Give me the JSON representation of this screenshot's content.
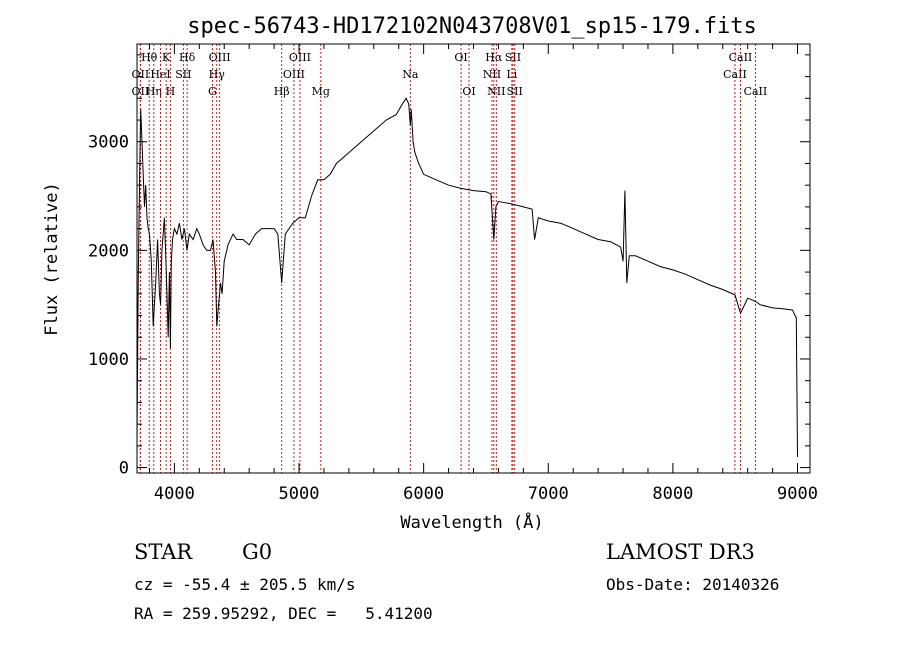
{
  "chart_data": {
    "type": "line",
    "title": "spec-56743-HD172102N043708V01_sp15-179.fits",
    "xlabel": "Wavelength (Å)",
    "ylabel": "Flux (relative)",
    "xlim": [
      3700,
      9100
    ],
    "ylim": [
      -50,
      3900
    ],
    "xticks": [
      4000,
      5000,
      6000,
      7000,
      8000,
      9000
    ],
    "xtick_labels": [
      "4000",
      "5000",
      "6000",
      "7000",
      "8000",
      "9000"
    ],
    "yticks": [
      0,
      1000,
      2000,
      3000
    ],
    "ytick_labels": [
      "0",
      "1000",
      "2000",
      "3000"
    ],
    "series": [
      {
        "name": "flux",
        "x": [
          3700,
          3710,
          3720,
          3730,
          3740,
          3750,
          3760,
          3770,
          3780,
          3790,
          3800,
          3815,
          3830,
          3850,
          3865,
          3880,
          3889,
          3900,
          3920,
          3935,
          3950,
          3960,
          3968,
          3975,
          3985,
          4000,
          4020,
          4040,
          4060,
          4080,
          4101,
          4120,
          4150,
          4180,
          4200,
          4230,
          4260,
          4290,
          4310,
          4330,
          4340,
          4355,
          4370,
          4383,
          4400,
          4430,
          4470,
          4500,
          4550,
          4600,
          4650,
          4700,
          4750,
          4800,
          4830,
          4861,
          4890,
          4920,
          4950,
          5000,
          5050,
          5100,
          5150,
          5200,
          5250,
          5300,
          5400,
          5500,
          5600,
          5700,
          5780,
          5830,
          5860,
          5880,
          5893,
          5900,
          5915,
          5930,
          5960,
          6000,
          6100,
          6200,
          6300,
          6400,
          6500,
          6540,
          6563,
          6580,
          6600,
          6700,
          6800,
          6870,
          6890,
          6920,
          7000,
          7100,
          7200,
          7300,
          7400,
          7500,
          7580,
          7600,
          7615,
          7630,
          7650,
          7700,
          7800,
          7900,
          8000,
          8100,
          8200,
          8300,
          8400,
          8498,
          8542,
          8600,
          8662,
          8700,
          8800,
          8900,
          8960,
          8980,
          8990,
          9000
        ],
        "y": [
          250,
          1700,
          2600,
          3300,
          3000,
          2700,
          2400,
          2600,
          2300,
          2200,
          2150,
          1900,
          1300,
          1700,
          2100,
          1600,
          1500,
          2000,
          2300,
          1800,
          1200,
          1800,
          1100,
          1900,
          2100,
          2200,
          2150,
          2250,
          2100,
          2200,
          2000,
          2150,
          2100,
          2200,
          2150,
          2050,
          2000,
          2000,
          2100,
          1800,
          1300,
          1500,
          1700,
          1600,
          1900,
          2050,
          2150,
          2100,
          2100,
          2050,
          2150,
          2200,
          2200,
          2200,
          2150,
          1700,
          2150,
          2200,
          2250,
          2300,
          2300,
          2500,
          2650,
          2650,
          2700,
          2800,
          2900,
          3000,
          3100,
          3200,
          3250,
          3350,
          3400,
          3350,
          3150,
          3300,
          3000,
          2900,
          2800,
          2700,
          2650,
          2600,
          2570,
          2550,
          2540,
          2520,
          2100,
          2400,
          2450,
          2430,
          2400,
          2380,
          2100,
          2300,
          2270,
          2250,
          2200,
          2150,
          2100,
          2080,
          2030,
          1900,
          2550,
          1700,
          1950,
          1950,
          1900,
          1850,
          1820,
          1780,
          1730,
          1680,
          1640,
          1590,
          1420,
          1560,
          1530,
          1500,
          1470,
          1460,
          1450,
          1400,
          1380,
          100
        ]
      }
    ],
    "lines": [
      {
        "label": "Hθ",
        "wave": 3798,
        "row": 1
      },
      {
        "label": "OII",
        "wave": 3727,
        "row": 2
      },
      {
        "label": "OII",
        "wave": 3727,
        "row": 3
      },
      {
        "label": "Hη",
        "wave": 3835,
        "row": 3
      },
      {
        "label": "HeI",
        "wave": 3889,
        "row": 2
      },
      {
        "label": "K",
        "wave": 3934,
        "row": 1
      },
      {
        "label": "H",
        "wave": 3968,
        "row": 3
      },
      {
        "label": "SII",
        "wave": 4072,
        "row": 2
      },
      {
        "label": "Hδ",
        "wave": 4102,
        "row": 1
      },
      {
        "label": "G",
        "wave": 4305,
        "row": 3
      },
      {
        "label": "Hγ",
        "wave": 4340,
        "row": 2
      },
      {
        "label": "OIII",
        "wave": 4363,
        "row": 1
      },
      {
        "label": "Hβ",
        "wave": 4861,
        "row": 3
      },
      {
        "label": "OIII",
        "wave": 4959,
        "row": 2
      },
      {
        "label": "OIII",
        "wave": 5007,
        "row": 1
      },
      {
        "label": "Mg",
        "wave": 5175,
        "row": 3
      },
      {
        "label": "Na",
        "wave": 5893,
        "row": 2
      },
      {
        "label": "OI",
        "wave": 6300,
        "row": 1
      },
      {
        "label": "OI",
        "wave": 6364,
        "row": 3
      },
      {
        "label": "NII",
        "wave": 6548,
        "row": 2
      },
      {
        "label": "Hα",
        "wave": 6563,
        "row": 1
      },
      {
        "label": "NII",
        "wave": 6583,
        "row": 3
      },
      {
        "label": "Li",
        "wave": 6708,
        "row": 2
      },
      {
        "label": "SII",
        "wave": 6717,
        "row": 1
      },
      {
        "label": "SII",
        "wave": 6731,
        "row": 3
      },
      {
        "label": "CaII",
        "wave": 8498,
        "row": 2
      },
      {
        "label": "CaII",
        "wave": 8542,
        "row": 1
      },
      {
        "label": "CaII",
        "wave": 8662,
        "row": 3
      }
    ]
  },
  "info": {
    "object_class": "STAR",
    "subclass": "G0",
    "survey": "LAMOST DR3",
    "redshift": "cz = -55.4 ± 205.5 km/s",
    "obs_date": "Obs-Date: 20140326",
    "coords": "RA = 259.95292, DEC =   5.41200"
  }
}
